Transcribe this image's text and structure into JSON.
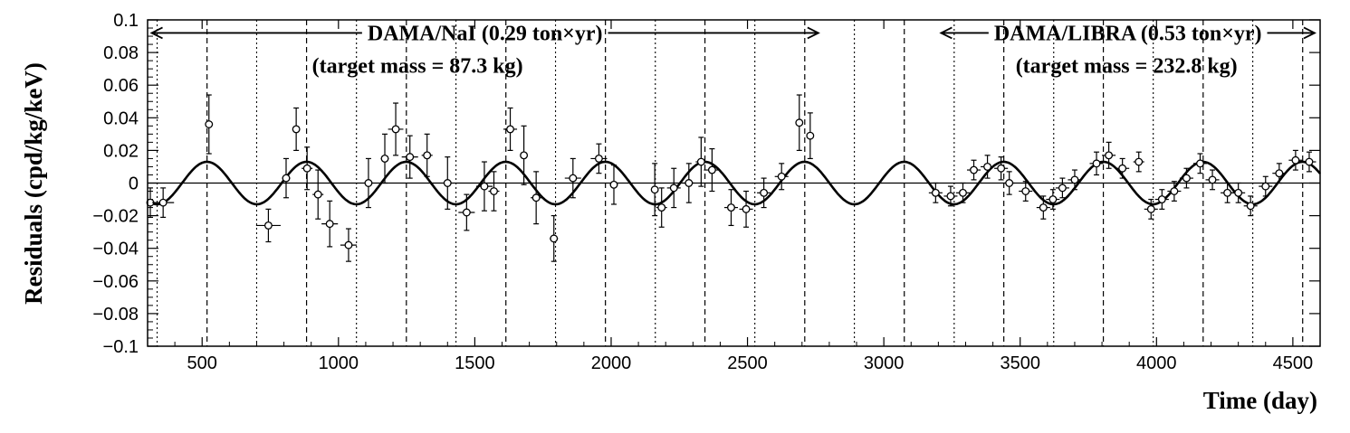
{
  "chart_data": {
    "type": "scatter",
    "title": "",
    "xlabel": "Time (day)",
    "ylabel": "Residuals (cpd/kg/keV)",
    "xlim": [
      300,
      4600
    ],
    "ylim": [
      -0.1,
      0.1
    ],
    "x_ticks": [
      500,
      1000,
      1500,
      2000,
      2500,
      3000,
      3500,
      4000,
      4500
    ],
    "x_tick_labels": [
      "500",
      "1000",
      "1500",
      "2000",
      "2500",
      "3000",
      "3500",
      "4000",
      "4500"
    ],
    "y_ticks": [
      -0.1,
      -0.08,
      -0.06,
      -0.04,
      -0.02,
      0,
      0.02,
      0.04,
      0.06,
      0.08,
      0.1
    ],
    "y_tick_labels": [
      "−0.1",
      "−0.08",
      "−0.06",
      "−0.04",
      "−0.02",
      "0",
      "0.02",
      "0.04",
      "0.06",
      "0.08",
      "0.1"
    ],
    "grid": false,
    "annotations": [
      {
        "text": "DAMA/NaI (0.29 ton×yr)",
        "x_range": [
          315,
          2760
        ],
        "y": 0.092
      },
      {
        "text": "(target mass = 87.3 kg)",
        "x": 1290,
        "y": 0.072
      },
      {
        "text": "DAMA/LIBRA (0.53 ton×yr)",
        "x_range": [
          3210,
          4580
        ],
        "y": 0.092
      },
      {
        "text": "(target mass = 232.8 kg)",
        "x": 3890,
        "y": 0.072
      }
    ],
    "model_curve": {
      "type": "cosine",
      "amplitude": 0.013,
      "period": 365.25,
      "phase": 152.5
    },
    "vertical_lines": {
      "dashed": [
        518,
        883,
        1249,
        1614,
        1979,
        2344,
        2710,
        3075,
        3440,
        3805,
        4171,
        4536
      ],
      "dotted": [
        335,
        700,
        1066,
        1431,
        1796,
        2162,
        2527,
        2892,
        3258,
        3623,
        3988,
        4353
      ]
    },
    "series": [
      {
        "points": [
          {
            "x": 310,
            "y": -0.012,
            "xerr": 10,
            "yerr": 0.009
          },
          {
            "x": 357,
            "y": -0.012,
            "xerr": 40,
            "yerr": 0.009
          },
          {
            "x": 525,
            "y": 0.036,
            "xerr": 12,
            "yerr": 0.018
          },
          {
            "x": 743,
            "y": -0.026,
            "xerr": 45,
            "yerr": 0.01
          },
          {
            "x": 808,
            "y": 0.003,
            "xerr": 15,
            "yerr": 0.012
          },
          {
            "x": 845,
            "y": 0.033,
            "xerr": 12,
            "yerr": 0.013
          },
          {
            "x": 885,
            "y": 0.009,
            "xerr": 20,
            "yerr": 0.013
          },
          {
            "x": 925,
            "y": -0.007,
            "xerr": 20,
            "yerr": 0.015
          },
          {
            "x": 968,
            "y": -0.025,
            "xerr": 30,
            "yerr": 0.014
          },
          {
            "x": 1037,
            "y": -0.038,
            "xerr": 30,
            "yerr": 0.01
          },
          {
            "x": 1110,
            "y": 0.0,
            "xerr": 15,
            "yerr": 0.015
          },
          {
            "x": 1170,
            "y": 0.015,
            "xerr": 15,
            "yerr": 0.015
          },
          {
            "x": 1210,
            "y": 0.033,
            "xerr": 28,
            "yerr": 0.016
          },
          {
            "x": 1262,
            "y": 0.016,
            "xerr": 30,
            "yerr": 0.013
          },
          {
            "x": 1325,
            "y": 0.017,
            "xerr": 20,
            "yerr": 0.013
          },
          {
            "x": 1400,
            "y": 0.0,
            "xerr": 15,
            "yerr": 0.016
          },
          {
            "x": 1470,
            "y": -0.018,
            "xerr": 30,
            "yerr": 0.011
          },
          {
            "x": 1535,
            "y": -0.002,
            "xerr": 30,
            "yerr": 0.015
          },
          {
            "x": 1570,
            "y": -0.005,
            "xerr": 20,
            "yerr": 0.012
          },
          {
            "x": 1630,
            "y": 0.033,
            "xerr": 25,
            "yerr": 0.013
          },
          {
            "x": 1680,
            "y": 0.017,
            "xerr": 12,
            "yerr": 0.018
          },
          {
            "x": 1725,
            "y": -0.009,
            "xerr": 20,
            "yerr": 0.016
          },
          {
            "x": 1790,
            "y": -0.034,
            "xerr": 15,
            "yerr": 0.014
          },
          {
            "x": 1860,
            "y": 0.003,
            "xerr": 30,
            "yerr": 0.012
          },
          {
            "x": 1955,
            "y": 0.015,
            "xerr": 30,
            "yerr": 0.009
          },
          {
            "x": 2010,
            "y": -0.001,
            "xerr": 15,
            "yerr": 0.012
          },
          {
            "x": 2160,
            "y": -0.004,
            "xerr": 10,
            "yerr": 0.016
          },
          {
            "x": 2185,
            "y": -0.015,
            "xerr": 20,
            "yerr": 0.012
          },
          {
            "x": 2230,
            "y": -0.003,
            "xerr": 25,
            "yerr": 0.012
          },
          {
            "x": 2285,
            "y": 0.0,
            "xerr": 20,
            "yerr": 0.012
          },
          {
            "x": 2330,
            "y": 0.013,
            "xerr": 20,
            "yerr": 0.015
          },
          {
            "x": 2370,
            "y": 0.008,
            "xerr": 30,
            "yerr": 0.013
          },
          {
            "x": 2440,
            "y": -0.015,
            "xerr": 25,
            "yerr": 0.011
          },
          {
            "x": 2495,
            "y": -0.016,
            "xerr": 25,
            "yerr": 0.011
          },
          {
            "x": 2560,
            "y": -0.006,
            "xerr": 25,
            "yerr": 0.009
          },
          {
            "x": 2625,
            "y": 0.004,
            "xerr": 25,
            "yerr": 0.008
          },
          {
            "x": 2690,
            "y": 0.037,
            "xerr": 10,
            "yerr": 0.017
          },
          {
            "x": 2730,
            "y": 0.029,
            "xerr": 12,
            "yerr": 0.014
          },
          {
            "x": 3190,
            "y": -0.006,
            "xerr": 25,
            "yerr": 0.006
          },
          {
            "x": 3245,
            "y": -0.008,
            "xerr": 25,
            "yerr": 0.006
          },
          {
            "x": 3290,
            "y": -0.006,
            "xerr": 25,
            "yerr": 0.006
          },
          {
            "x": 3330,
            "y": 0.008,
            "xerr": 25,
            "yerr": 0.006
          },
          {
            "x": 3380,
            "y": 0.01,
            "xerr": 25,
            "yerr": 0.007
          },
          {
            "x": 3430,
            "y": 0.009,
            "xerr": 25,
            "yerr": 0.007
          },
          {
            "x": 3460,
            "y": 0.0,
            "xerr": 20,
            "yerr": 0.007
          },
          {
            "x": 3520,
            "y": -0.005,
            "xerr": 25,
            "yerr": 0.006
          },
          {
            "x": 3585,
            "y": -0.015,
            "xerr": 25,
            "yerr": 0.007
          },
          {
            "x": 3620,
            "y": -0.01,
            "xerr": 25,
            "yerr": 0.006
          },
          {
            "x": 3655,
            "y": -0.003,
            "xerr": 25,
            "yerr": 0.006
          },
          {
            "x": 3700,
            "y": 0.002,
            "xerr": 25,
            "yerr": 0.006
          },
          {
            "x": 3780,
            "y": 0.012,
            "xerr": 25,
            "yerr": 0.007
          },
          {
            "x": 3825,
            "y": 0.017,
            "xerr": 25,
            "yerr": 0.008
          },
          {
            "x": 3875,
            "y": 0.009,
            "xerr": 25,
            "yerr": 0.006
          },
          {
            "x": 3935,
            "y": 0.013,
            "xerr": 20,
            "yerr": 0.006
          },
          {
            "x": 3980,
            "y": -0.016,
            "xerr": 25,
            "yerr": 0.006
          },
          {
            "x": 4020,
            "y": -0.01,
            "xerr": 25,
            "yerr": 0.006
          },
          {
            "x": 4065,
            "y": -0.005,
            "xerr": 25,
            "yerr": 0.006
          },
          {
            "x": 4110,
            "y": 0.003,
            "xerr": 25,
            "yerr": 0.006
          },
          {
            "x": 4160,
            "y": 0.012,
            "xerr": 25,
            "yerr": 0.006
          },
          {
            "x": 4205,
            "y": 0.002,
            "xerr": 25,
            "yerr": 0.006
          },
          {
            "x": 4260,
            "y": -0.006,
            "xerr": 25,
            "yerr": 0.006
          },
          {
            "x": 4300,
            "y": -0.006,
            "xerr": 25,
            "yerr": 0.006
          },
          {
            "x": 4345,
            "y": -0.014,
            "xerr": 25,
            "yerr": 0.006
          },
          {
            "x": 4400,
            "y": -0.002,
            "xerr": 25,
            "yerr": 0.006
          },
          {
            "x": 4450,
            "y": 0.006,
            "xerr": 25,
            "yerr": 0.006
          },
          {
            "x": 4510,
            "y": 0.014,
            "xerr": 25,
            "yerr": 0.006
          },
          {
            "x": 4560,
            "y": 0.013,
            "xerr": 25,
            "yerr": 0.006
          }
        ]
      }
    ]
  }
}
